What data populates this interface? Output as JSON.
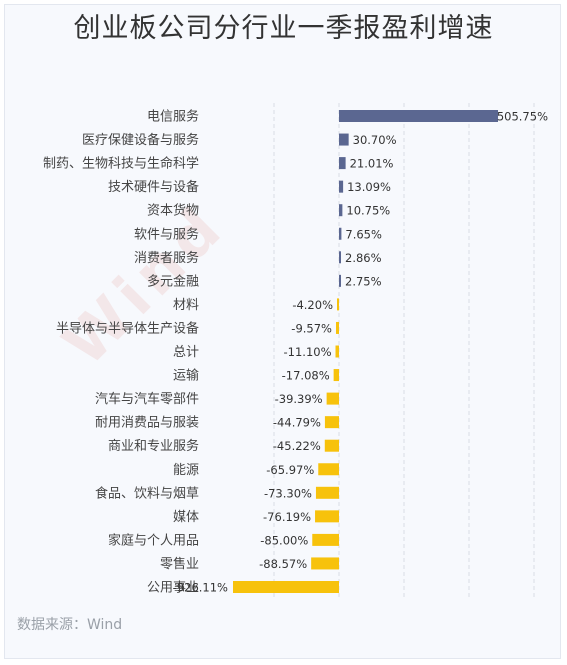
{
  "title": "创业板公司分行业一季报盈利增速",
  "source": "数据来源：Wind",
  "watermark": "Wind",
  "colors": {
    "positive": "#5b6791",
    "negative": "#f7c20c",
    "grid": "#d9dde5"
  },
  "chart_data": {
    "type": "bar",
    "orientation": "horizontal",
    "title": "创业板公司分行业一季报盈利增速",
    "unit": "%",
    "grid": true,
    "categories": [
      "电信服务",
      "医疗保健设备与服务",
      "制药、生物科技与生命科学",
      "技术硬件与设备",
      "资本货物",
      "软件与服务",
      "消费者服务",
      "多元金融",
      "材料",
      "半导体与半导体生产设备",
      "总计",
      "运输",
      "汽车与汽车零部件",
      "耐用消费品与服装",
      "商业和专业服务",
      "能源",
      "食品、饮料与烟草",
      "媒体",
      "家庭与个人用品",
      "零售业",
      "公用事业"
    ],
    "values": [
      505.75,
      30.7,
      21.01,
      13.09,
      10.75,
      7.65,
      2.86,
      2.75,
      -4.2,
      -9.57,
      -11.1,
      -17.08,
      -39.39,
      -44.79,
      -45.22,
      -65.97,
      -73.3,
      -76.19,
      -85.0,
      -88.57,
      -926.11
    ],
    "labels": [
      "505.75%",
      "30.70%",
      "21.01%",
      "13.09%",
      "10.75%",
      "7.65%",
      "2.86%",
      "2.75%",
      "-4.20%",
      "-9.57%",
      "-11.10%",
      "-17.08%",
      "-39.39%",
      "-44.79%",
      "-45.22%",
      "-65.97%",
      "-73.30%",
      "-76.19%",
      "-85.00%",
      "-88.57%",
      "-926.11%"
    ],
    "xlim": [
      -900,
      1600
    ]
  }
}
